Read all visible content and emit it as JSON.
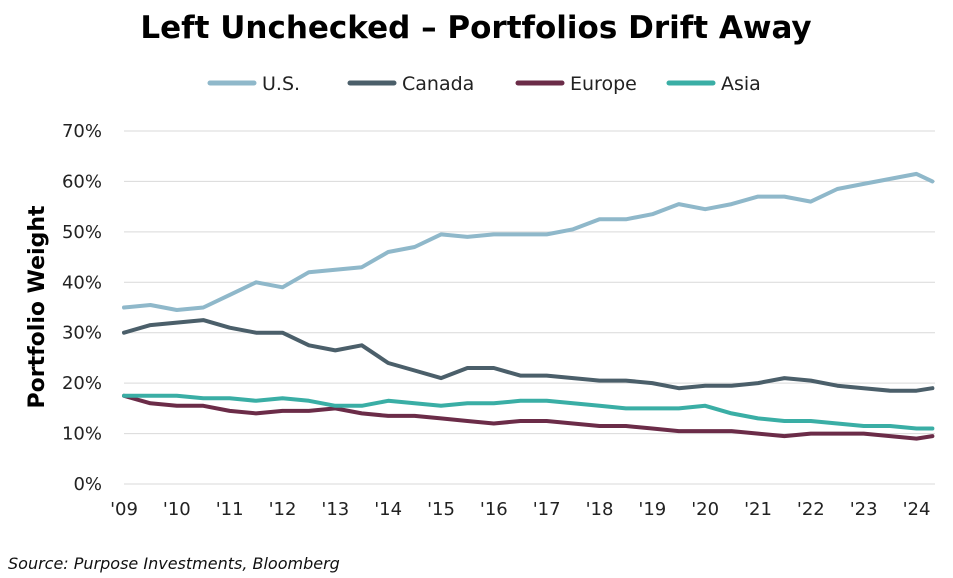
{
  "chart_data": {
    "type": "line",
    "title": "Left Unchecked – Portfolios Drift Away",
    "xlabel": "",
    "ylabel": "Portfolio Weight",
    "ylim": [
      0,
      70
    ],
    "yticks": [
      "0%",
      "10%",
      "20%",
      "30%",
      "40%",
      "50%",
      "60%",
      "70%"
    ],
    "xticks": [
      "'09",
      "'10",
      "'11",
      "'12",
      "'13",
      "'14",
      "'15",
      "'16",
      "'17",
      "'18",
      "'19",
      "'20",
      "'21",
      "'22",
      "'23",
      "'24"
    ],
    "xlim": [
      2009.0,
      2024.35
    ],
    "grid": true,
    "legend_position": "top-center",
    "x": [
      2009.0,
      2009.5,
      2010.0,
      2010.5,
      2011.0,
      2011.5,
      2012.0,
      2012.5,
      2013.0,
      2013.5,
      2014.0,
      2014.5,
      2015.0,
      2015.5,
      2016.0,
      2016.5,
      2017.0,
      2017.5,
      2018.0,
      2018.5,
      2019.0,
      2019.5,
      2020.0,
      2020.5,
      2021.0,
      2021.5,
      2022.0,
      2022.5,
      2023.0,
      2023.5,
      2024.0,
      2024.3
    ],
    "series": [
      {
        "name": "U.S.",
        "color": "#8fb8ca",
        "values": [
          35,
          35.5,
          34.5,
          35,
          37.5,
          40,
          39,
          42,
          42.5,
          43,
          46,
          47,
          49.5,
          49,
          49.5,
          49.5,
          49.5,
          50.5,
          52.5,
          52.5,
          53.5,
          55.5,
          54.5,
          55.5,
          57,
          57,
          56,
          58.5,
          59.5,
          60.5,
          61.5,
          60
        ]
      },
      {
        "name": "Canada",
        "color": "#4b5f6a",
        "values": [
          30,
          31.5,
          32,
          32.5,
          31,
          30,
          30,
          27.5,
          26.5,
          27.5,
          24,
          22.5,
          21,
          23,
          23,
          21.5,
          21.5,
          21,
          20.5,
          20.5,
          20,
          19,
          19.5,
          19.5,
          20,
          21,
          20.5,
          19.5,
          19,
          18.5,
          18.5,
          19
        ]
      },
      {
        "name": "Europe",
        "color": "#6b2c48",
        "values": [
          17.5,
          16,
          15.5,
          15.5,
          14.5,
          14,
          14.5,
          14.5,
          15,
          14,
          13.5,
          13.5,
          13,
          12.5,
          12,
          12.5,
          12.5,
          12,
          11.5,
          11.5,
          11,
          10.5,
          10.5,
          10.5,
          10,
          9.5,
          10,
          10,
          10,
          9.5,
          9,
          9.5
        ]
      },
      {
        "name": "Asia",
        "color": "#3aaea5",
        "values": [
          17.5,
          17.5,
          17.5,
          17,
          17,
          16.5,
          17,
          16.5,
          15.5,
          15.5,
          16.5,
          16,
          15.5,
          16,
          16,
          16.5,
          16.5,
          16,
          15.5,
          15,
          15,
          15,
          15.5,
          14,
          13,
          12.5,
          12.5,
          12,
          11.5,
          11.5,
          11,
          11
        ]
      }
    ]
  },
  "source": "Source: Purpose Investments, Bloomberg"
}
